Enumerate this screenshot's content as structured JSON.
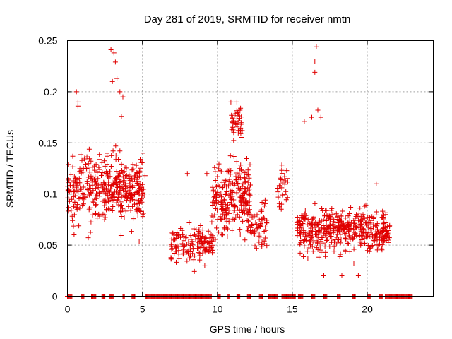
{
  "chart_data": {
    "type": "scatter",
    "title": "Day 281 of 2019, SRMTID for receiver nmtn",
    "xlabel": "GPS time / hours",
    "ylabel": "SRMTID / TECUs",
    "xlim": [
      0,
      24.4
    ],
    "ylim": [
      0,
      0.25
    ],
    "xticks": [
      0,
      5,
      10,
      15,
      20
    ],
    "yticks": [
      0,
      0.05,
      0.1,
      0.15,
      0.2,
      0.25
    ],
    "grid": true,
    "marker": "+",
    "series_color": "#e00000",
    "series": [
      {
        "name": "SRMTID",
        "clusters": [
          {
            "x": [
              0.0,
              5.2
            ],
            "y_mean": 0.105,
            "y_sd": 0.028,
            "n": 420
          },
          {
            "x": [
              6.9,
              9.8
            ],
            "y_mean": 0.052,
            "y_sd": 0.016,
            "n": 150
          },
          {
            "x": [
              9.6,
              12.2
            ],
            "y_mean": 0.095,
            "y_sd": 0.032,
            "n": 250
          },
          {
            "x": [
              10.9,
              11.7
            ],
            "y_mean": 0.17,
            "y_sd": 0.016,
            "n": 40
          },
          {
            "x": [
              12.2,
              13.3
            ],
            "y_mean": 0.07,
            "y_sd": 0.016,
            "n": 60
          },
          {
            "x": [
              14.0,
              14.7
            ],
            "y_mean": 0.11,
            "y_sd": 0.022,
            "n": 30
          },
          {
            "x": [
              15.3,
              21.5
            ],
            "y_mean": 0.065,
            "y_sd": 0.018,
            "n": 480
          }
        ],
        "points": [
          [
            0.6,
            0.2
          ],
          [
            0.7,
            0.19
          ],
          [
            0.7,
            0.186
          ],
          [
            2.9,
            0.241
          ],
          [
            3.1,
            0.238
          ],
          [
            3.2,
            0.229
          ],
          [
            3.3,
            0.213
          ],
          [
            3.0,
            0.21
          ],
          [
            3.5,
            0.2
          ],
          [
            3.7,
            0.195
          ],
          [
            3.6,
            0.176
          ],
          [
            9.3,
            0.12
          ],
          [
            8.0,
            0.12
          ],
          [
            10.9,
            0.19
          ],
          [
            11.3,
            0.19
          ],
          [
            16.6,
            0.244
          ],
          [
            16.5,
            0.23
          ],
          [
            16.5,
            0.219
          ],
          [
            16.7,
            0.182
          ],
          [
            16.3,
            0.175
          ],
          [
            15.8,
            0.171
          ],
          [
            16.9,
            0.175
          ],
          [
            17.1,
            0.02
          ],
          [
            18.3,
            0.02
          ],
          [
            19.4,
            0.02
          ],
          [
            20.6,
            0.11
          ]
        ],
        "zero_segments": [
          [
            0.0,
            0.3
          ],
          [
            0.9,
            1.1
          ],
          [
            1.6,
            1.9
          ],
          [
            2.3,
            2.5
          ],
          [
            2.8,
            3.1
          ],
          [
            3.7,
            3.8
          ],
          [
            4.3,
            4.5
          ],
          [
            5.2,
            9.6
          ],
          [
            10.0,
            10.2
          ],
          [
            10.7,
            10.8
          ],
          [
            11.3,
            11.5
          ],
          [
            12.0,
            12.2
          ],
          [
            12.8,
            13.0
          ],
          [
            13.4,
            14.0
          ],
          [
            14.3,
            15.2
          ],
          [
            15.4,
            15.7
          ],
          [
            16.3,
            16.5
          ],
          [
            17.1,
            17.3
          ],
          [
            18.0,
            18.2
          ],
          [
            19.0,
            19.2
          ],
          [
            20.0,
            20.2
          ],
          [
            20.8,
            21.0
          ],
          [
            21.2,
            23.0
          ]
        ]
      }
    ]
  }
}
